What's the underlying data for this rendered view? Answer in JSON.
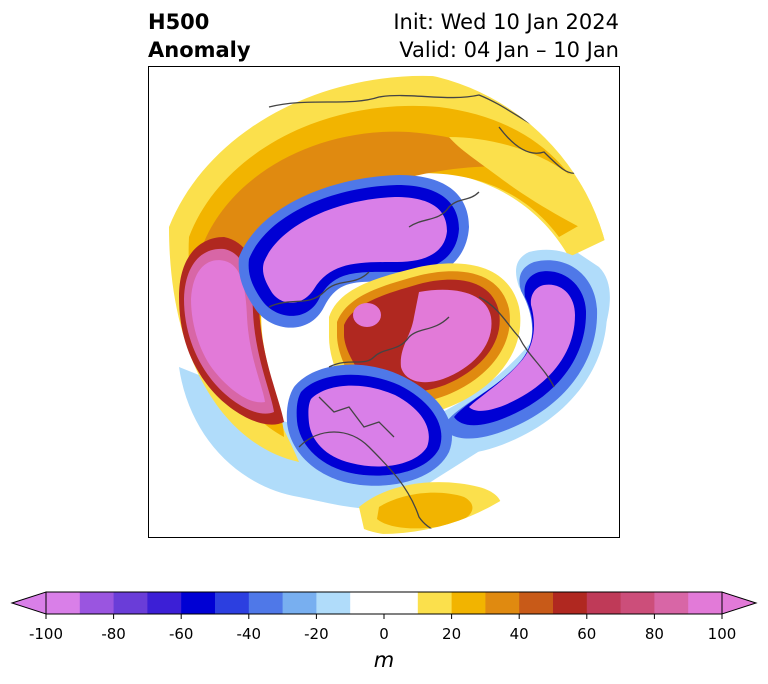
{
  "title": {
    "line1": "H500",
    "line2": "Anomaly",
    "init": "Init: Wed 10 Jan 2024",
    "valid": "Valid: 04 Jan – 10 Jan"
  },
  "colorbar": {
    "min": -100,
    "max": 100,
    "step": 10,
    "tick_labels": [
      "-100",
      "-80",
      "-60",
      "-40",
      "-20",
      "0",
      "20",
      "40",
      "60",
      "80",
      "100"
    ],
    "units": "m",
    "extend": "both",
    "colors": [
      "#d97fe8",
      "#9a55e0",
      "#6a3dd8",
      "#3c1fd6",
      "#0000d4",
      "#2c3fe0",
      "#4f78e8",
      "#78aff0",
      "#b0dcfa",
      "#ffffff",
      "#ffffff",
      "#fbe04c",
      "#f2b400",
      "#e08a10",
      "#c85a18",
      "#b02820",
      "#bf3a58",
      "#cc4e7a",
      "#d866a6",
      "#e27ad8"
    ],
    "neg_end_color": "#d97fe8",
    "pos_end_color": "#e27ad8"
  },
  "map_colors": {
    "deep_neg": "#d97fe8",
    "blue_core": "#0000d4",
    "blue_mid": "#4f78e8",
    "blue_light": "#b0dcfa",
    "yellow": "#fbe04c",
    "gold": "#f2b400",
    "orange": "#e08a10",
    "red": "#b02820",
    "pink": "#d866a6",
    "magenta": "#e27ad8",
    "coast": "#444444"
  }
}
